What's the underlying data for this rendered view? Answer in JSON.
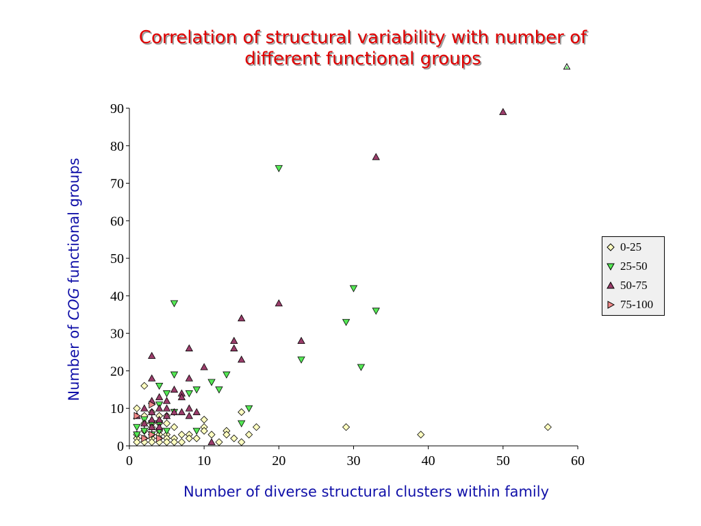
{
  "title_line1": "Correlation of structural variability with number of",
  "title_line2": "different functional groups",
  "ylabel_pre": "Number of ",
  "ylabel_em": "COG",
  "ylabel_post": " functional groups",
  "xlabel": "Number of diverse structural clusters within family",
  "legend": [
    {
      "label": "0-25",
      "marker": "diamond",
      "color": "#ffffc0"
    },
    {
      "label": "25-50",
      "marker": "triangle-down",
      "color": "#55e855"
    },
    {
      "label": "50-75",
      "marker": "triangle-up",
      "color": "#9a3d6a"
    },
    {
      "label": "75-100",
      "marker": "triangle-right",
      "color": "#f08888"
    }
  ],
  "chart_data": {
    "type": "scatter",
    "xlim": [
      0,
      60
    ],
    "ylim": [
      0,
      90
    ],
    "xticks": [
      0,
      10,
      20,
      30,
      40,
      50,
      60
    ],
    "yticks": [
      0,
      10,
      20,
      30,
      40,
      50,
      60,
      70,
      80,
      90
    ],
    "grid": false,
    "legend_position": "right",
    "series": [
      {
        "name": "0-25",
        "marker": "diamond",
        "color": "#ffffc0",
        "points": [
          [
            1,
            10
          ],
          [
            1,
            3
          ],
          [
            1,
            2
          ],
          [
            1,
            1
          ],
          [
            2,
            16
          ],
          [
            2,
            8
          ],
          [
            2,
            6
          ],
          [
            2,
            4
          ],
          [
            2,
            2
          ],
          [
            2,
            1
          ],
          [
            3,
            9
          ],
          [
            3,
            6
          ],
          [
            3,
            5
          ],
          [
            3,
            3
          ],
          [
            3,
            2
          ],
          [
            3,
            1
          ],
          [
            4,
            8
          ],
          [
            4,
            6
          ],
          [
            4,
            4
          ],
          [
            4,
            3
          ],
          [
            4,
            2
          ],
          [
            4,
            1
          ],
          [
            5,
            8
          ],
          [
            5,
            6
          ],
          [
            5,
            3
          ],
          [
            5,
            2
          ],
          [
            5,
            1
          ],
          [
            6,
            5
          ],
          [
            6,
            2
          ],
          [
            6,
            1
          ],
          [
            7,
            3
          ],
          [
            7,
            1
          ],
          [
            8,
            3
          ],
          [
            8,
            2
          ],
          [
            9,
            2
          ],
          [
            10,
            7
          ],
          [
            10,
            5
          ],
          [
            10,
            4
          ],
          [
            11,
            3
          ],
          [
            12,
            1
          ],
          [
            13,
            4
          ],
          [
            13,
            3
          ],
          [
            14,
            2
          ],
          [
            15,
            9
          ],
          [
            15,
            1
          ],
          [
            16,
            3
          ],
          [
            17,
            5
          ],
          [
            29,
            5
          ],
          [
            39,
            3
          ],
          [
            56,
            5
          ]
        ]
      },
      {
        "name": "25-50",
        "marker": "triangle-down",
        "color": "#55e855",
        "points": [
          [
            1,
            5
          ],
          [
            1,
            3
          ],
          [
            2,
            7
          ],
          [
            2,
            4
          ],
          [
            3,
            6
          ],
          [
            3,
            3
          ],
          [
            4,
            16
          ],
          [
            4,
            11
          ],
          [
            4,
            6
          ],
          [
            4,
            4
          ],
          [
            5,
            14
          ],
          [
            5,
            4
          ],
          [
            6,
            38
          ],
          [
            6,
            19
          ],
          [
            6,
            9
          ],
          [
            8,
            14
          ],
          [
            9,
            15
          ],
          [
            9,
            4
          ],
          [
            11,
            17
          ],
          [
            12,
            15
          ],
          [
            13,
            19
          ],
          [
            15,
            6
          ],
          [
            16,
            10
          ],
          [
            20,
            74
          ],
          [
            23,
            23
          ],
          [
            29,
            33
          ],
          [
            30,
            42
          ],
          [
            31,
            21
          ],
          [
            33,
            36
          ]
        ]
      },
      {
        "name": "50-75",
        "marker": "triangle-up",
        "color": "#9a3d6a",
        "points": [
          [
            1,
            8
          ],
          [
            2,
            10
          ],
          [
            2,
            6
          ],
          [
            3,
            24
          ],
          [
            3,
            18
          ],
          [
            3,
            12
          ],
          [
            3,
            9
          ],
          [
            3,
            7
          ],
          [
            3,
            5
          ],
          [
            4,
            13
          ],
          [
            4,
            10
          ],
          [
            4,
            7
          ],
          [
            4,
            5
          ],
          [
            5,
            12
          ],
          [
            5,
            10
          ],
          [
            5,
            8
          ],
          [
            6,
            15
          ],
          [
            6,
            9
          ],
          [
            7,
            14
          ],
          [
            7,
            13
          ],
          [
            7,
            9
          ],
          [
            8,
            26
          ],
          [
            8,
            18
          ],
          [
            8,
            10
          ],
          [
            8,
            8
          ],
          [
            9,
            9
          ],
          [
            10,
            21
          ],
          [
            11,
            1
          ],
          [
            14,
            28
          ],
          [
            14,
            26
          ],
          [
            15,
            34
          ],
          [
            15,
            23
          ],
          [
            20,
            38
          ],
          [
            23,
            28
          ],
          [
            33,
            77
          ],
          [
            50,
            89
          ]
        ]
      },
      {
        "name": "75-100",
        "marker": "triangle-right",
        "color": "#f08888",
        "points": [
          [
            1,
            8
          ],
          [
            2,
            2
          ],
          [
            3,
            11
          ],
          [
            3,
            3
          ],
          [
            4,
            2
          ]
        ]
      }
    ]
  }
}
